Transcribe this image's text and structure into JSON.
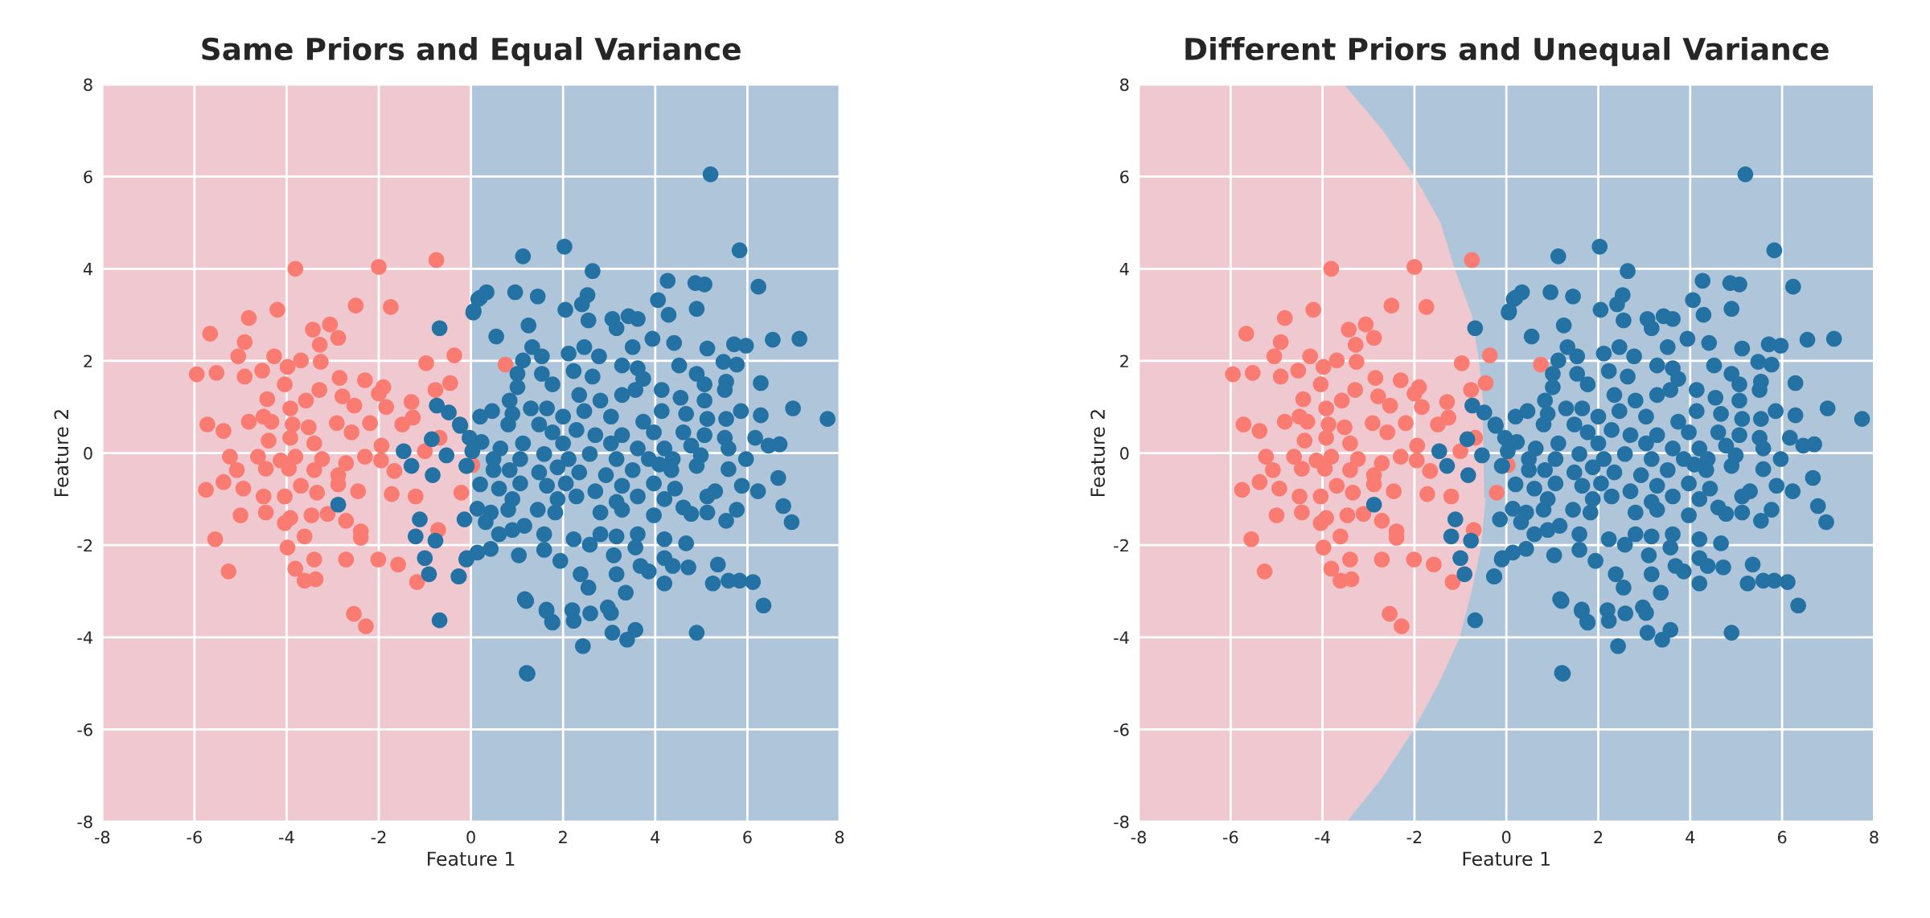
{
  "chart_data": [
    {
      "type": "scatter",
      "title": "Same Priors and Equal Variance",
      "xlabel": "Feature 1",
      "ylabel": "Feature 2",
      "xlim": [
        -8,
        8
      ],
      "ylim": [
        -8,
        8
      ],
      "xticks": [
        -8,
        -6,
        -4,
        -2,
        0,
        2,
        4,
        6,
        8
      ],
      "yticks": [
        -8,
        -6,
        -4,
        -2,
        0,
        2,
        4,
        6,
        8
      ],
      "grid": true,
      "bands": [
        {
          "axis": "x",
          "from": -8,
          "to": 0,
          "color": "#efc9cf"
        },
        {
          "axis": "x",
          "from": 0,
          "to": 8,
          "color": "#afc5d9"
        }
      ],
      "series": [
        {
          "color": "#f97b72",
          "marker": "circle",
          "x": [
            -3.81,
            -2.0,
            -0.75,
            -4.2,
            -2.5,
            -1.74,
            -4.82,
            -5.66,
            -3.06,
            -3.43,
            -2.88,
            -4.91,
            -3.28,
            -5.05,
            -4.27,
            -3.69,
            -3.26,
            -0.97,
            -0.36,
            -5.95,
            -5.52,
            -4.91,
            -4.53,
            -3.98,
            -2.85,
            -2.3,
            -0.45,
            -0.77,
            -4.04,
            -3.29,
            -4.42,
            -2.79,
            -1.9,
            -1.29,
            -2.53,
            -2.0,
            -1.84,
            -3.92,
            -3.58,
            -5.72,
            -5.37,
            -4.82,
            -4.5,
            -4.33,
            -3.87,
            -3.52,
            -2.91,
            -2.59,
            -2.19,
            -1.49,
            -1.26,
            -4.39,
            -3.92,
            -3.4,
            -1.94,
            -0.68,
            -4.62,
            -5.23,
            -4.13,
            -3.81,
            -3.23,
            -2.71,
            -2.3,
            -1.95,
            -1.0,
            -5.08,
            -4.45,
            -3.95,
            -3.4,
            -2.88,
            -1.66,
            0.03,
            -5.75,
            -5.37,
            -4.94,
            -4.5,
            -4.04,
            -3.69,
            -3.34,
            -2.88,
            -2.45,
            -1.72,
            -1.2,
            -0.21,
            -5.0,
            -4.45,
            -3.92,
            -3.46,
            -3.11,
            -2.71,
            -2.39,
            -5.55,
            -4.04,
            -3.61,
            -2.39,
            -0.71,
            -3.98,
            -3.4,
            -5.26,
            -3.81,
            -2.71,
            -2.01,
            -1.58,
            -3.61,
            -3.37,
            -1.17,
            -2.54,
            -2.28,
            0.75
          ],
          "values": [
            4.0,
            4.04,
            4.19,
            3.11,
            3.2,
            3.17,
            2.93,
            2.59,
            2.79,
            2.68,
            2.5,
            2.41,
            2.35,
            2.1,
            2.1,
            2.01,
            1.98,
            1.95,
            2.12,
            1.71,
            1.74,
            1.66,
            1.79,
            1.87,
            1.63,
            1.58,
            1.52,
            1.37,
            1.49,
            1.37,
            1.17,
            1.23,
            1.43,
            1.11,
            1.03,
            1.29,
            1.0,
            0.97,
            1.14,
            0.62,
            0.48,
            0.68,
            0.79,
            0.68,
            0.62,
            0.56,
            0.65,
            0.45,
            0.65,
            0.62,
            0.77,
            0.27,
            0.33,
            0.21,
            0.16,
            0.33,
            -0.08,
            -0.08,
            -0.16,
            -0.08,
            -0.13,
            -0.22,
            -0.08,
            -0.16,
            0.04,
            -0.37,
            -0.34,
            -0.34,
            -0.37,
            -0.48,
            -0.39,
            -0.26,
            -0.8,
            -0.63,
            -0.77,
            -0.94,
            -0.94,
            -0.71,
            -0.86,
            -0.68,
            -0.83,
            -0.89,
            -0.94,
            -0.86,
            -1.35,
            -1.29,
            -1.41,
            -1.35,
            -1.32,
            -1.47,
            -1.7,
            -1.87,
            -1.52,
            -1.81,
            -1.84,
            -1.67,
            -2.05,
            -2.31,
            -2.57,
            -2.51,
            -2.31,
            -2.31,
            -2.42,
            -2.77,
            -2.74,
            -2.8,
            -3.49,
            -3.76,
            1.92
          ]
        },
        {
          "color": "#2471a3",
          "marker": "circle",
          "x": [
            -2.88,
            -0.68,
            -0.74,
            -0.48,
            -0.24,
            -0.85,
            -1.46,
            -0.53,
            -1.29,
            -0.83,
            -1.11,
            -1.2,
            -0.77,
            -1.0,
            -0.91,
            -0.27,
            -0.1,
            -0.1,
            0.05,
            0.34,
            0.16,
            -0.68,
            1.21,
            1.17,
            1.64,
            1.76,
            5.2,
            1.13,
            2.03,
            2.64,
            5.83,
            4.27,
            4.87,
            5.07,
            6.24,
            4.9,
            0.96,
            1.45,
            0.06,
            0.2,
            2.53,
            2.41,
            2.05,
            2.55,
            1.25,
            0.55,
            4.06,
            4.29,
            3.07,
            3.42,
            3.62,
            3.16,
            3.51,
            3.94,
            4.41,
            5.13,
            5.71,
            5.97,
            6.55,
            7.13,
            5.48,
            5.77,
            1.33,
            1.54,
            2.12,
            2.46,
            2.78,
            1.13,
            1.01,
            1.54,
            1.77,
            1.01,
            2.23,
            2.64,
            3.28,
            3.62,
            3.74,
            4.52,
            4.9,
            5.07,
            5.54,
            5.51,
            6.29,
            3.57,
            4.14,
            4.55,
            0.84,
            2.35,
            2.81,
            3.28,
            5.07,
            6.99,
            7.74,
            5.86,
            6.29,
            0.2,
            0.46,
            0.9,
            1.3,
            1.65,
            2.0,
            2.46,
            3.04,
            3.74,
            4.14,
            4.67,
            5.13,
            5.54,
            -0.23,
            0.81,
            1.48,
            1.77,
            2.29,
            2.7,
            3.28,
            3.97,
            4.61,
            5.07,
            5.51,
            6.17,
            6.7,
            6.46,
            -0.03,
            0.23,
            0.64,
            1.13,
            2.0,
            3.04,
            3.62,
            4.2,
            4.78,
            5.59,
            0.03,
            0.49,
            1.07,
            1.59,
            2.12,
            2.58,
            3.16,
            3.86,
            4.38,
            4.99,
            5.97,
            -0.09,
            0.49,
            0.84,
            1.48,
            1.88,
            2.35,
            2.93,
            3.51,
            4.09,
            4.35,
            4.9,
            5.59,
            6.67,
            0.2,
            0.61,
            1.07,
            1.65,
            2.06,
            2.7,
            3.28,
            3.97,
            4.43,
            5.3,
            5.88,
            6.23,
            0.9,
            1.88,
            2.29,
            3.16,
            3.62,
            4.2,
            5.13,
            0.14,
            -0.14,
            0.43,
            0.81,
            1.45,
            1.83,
            2.81,
            3.28,
            3.97,
            4.61,
            4.78,
            5.13,
            5.54,
            5.77,
            6.78,
            6.96,
            0.32,
            0.61,
            0.9,
            1.16,
            1.59,
            2.23,
            2.58,
            2.81,
            3.16,
            3.62,
            4.2,
            4.67,
            0.43,
            0.14,
            -0.09,
            -0.26,
            1.04,
            1.59,
            1.94,
            3.1,
            3.57,
            3.68,
            4.2,
            4.38,
            4.72,
            5.36,
            2.38,
            2.55,
            3.16,
            3.86,
            4.2,
            5.25,
            5.59,
            5.83,
            6.12,
            3.36,
            1.2,
            1.64,
            1.77,
            2.2,
            2.23,
            2.59,
            2.97,
            3.04,
            3.07,
            3.39,
            3.57,
            2.43,
            4.9,
            6.35,
            1.23
          ],
          "values": [
            -1.12,
            2.71,
            1.03,
            0.88,
            0.62,
            0.3,
            0.04,
            -0.05,
            -0.28,
            -0.48,
            -1.44,
            -1.81,
            -1.9,
            -2.28,
            -2.63,
            -2.68,
            -2.31,
            -0.28,
            3.05,
            3.49,
            3.34,
            -3.63,
            -4.77,
            -3.17,
            -3.4,
            -3.66,
            6.05,
            4.27,
            4.48,
            3.95,
            4.4,
            3.74,
            3.69,
            3.66,
            3.61,
            3.13,
            3.49,
            3.4,
            3.08,
            3.37,
            3.43,
            3.23,
            3.11,
            2.88,
            2.77,
            2.53,
            3.32,
            3.0,
            2.91,
            2.97,
            2.91,
            2.71,
            2.3,
            2.48,
            2.39,
            2.27,
            2.36,
            2.33,
            2.46,
            2.48,
            1.98,
            1.92,
            2.3,
            2.1,
            2.16,
            2.3,
            2.1,
            2.01,
            1.72,
            1.72,
            1.49,
            1.43,
            1.78,
            1.66,
            1.9,
            1.84,
            1.61,
            1.9,
            1.72,
            1.49,
            1.55,
            1.37,
            1.52,
            1.37,
            1.37,
            1.2,
            1.14,
            1.26,
            1.14,
            1.26,
            1.14,
            0.97,
            0.74,
            0.91,
            0.82,
            0.79,
            0.91,
            0.85,
            0.97,
            0.97,
            0.79,
            0.91,
            0.79,
            0.68,
            0.91,
            0.85,
            0.74,
            0.74,
            0.59,
            0.62,
            0.62,
            0.45,
            0.5,
            0.39,
            0.39,
            0.45,
            0.45,
            0.39,
            0.33,
            0.33,
            0.19,
            0.16,
            0.33,
            0.24,
            0.1,
            0.21,
            0.21,
            0.21,
            0.1,
            0.1,
            0.16,
            0.1,
            0.04,
            -0.13,
            -0.13,
            -0.02,
            -0.13,
            -0.02,
            -0.13,
            -0.13,
            -0.13,
            -0.05,
            -0.13,
            -0.28,
            -0.37,
            -0.37,
            -0.42,
            -0.31,
            -0.42,
            -0.48,
            -0.37,
            -0.25,
            -0.37,
            -0.28,
            -0.35,
            -0.54,
            -0.68,
            -0.77,
            -0.66,
            -0.71,
            -0.66,
            -0.83,
            -0.71,
            -0.66,
            -0.77,
            -0.83,
            -0.71,
            -0.83,
            -1.0,
            -1.0,
            -0.94,
            -1.06,
            -0.94,
            -1.0,
            -0.94,
            -1.21,
            -1.44,
            -1.29,
            -1.23,
            -1.23,
            -1.29,
            -1.29,
            -1.23,
            -1.35,
            -1.18,
            -1.32,
            -1.29,
            -1.47,
            -1.23,
            -1.15,
            -1.5,
            -1.5,
            -1.76,
            -1.67,
            -1.58,
            -1.76,
            -1.87,
            -1.99,
            -1.76,
            -1.81,
            -1.76,
            -1.87,
            -1.96,
            -2.08,
            -2.16,
            -2.28,
            -2.68,
            -2.22,
            -2.1,
            -2.34,
            -2.22,
            -2.05,
            -2.45,
            -2.28,
            -2.45,
            -2.48,
            -2.42,
            -2.63,
            -2.92,
            -2.63,
            -2.57,
            -2.83,
            -2.83,
            -2.77,
            -2.77,
            -2.8,
            -3.03,
            -3.21,
            -3.43,
            -3.68,
            -3.41,
            -3.64,
            -3.48,
            -3.35,
            -3.47,
            -3.9,
            -4.05,
            -3.84,
            -4.19,
            -3.9,
            -3.31,
            -4.79
          ]
        }
      ]
    },
    {
      "type": "scatter",
      "title": "Different Priors and Unequal Variance",
      "xlabel": "Feature 1",
      "ylabel": "Feature 2",
      "xlim": [
        -8,
        8
      ],
      "ylim": [
        -8,
        8
      ],
      "xticks": [
        -8,
        -6,
        -4,
        -2,
        0,
        2,
        4,
        6,
        8
      ],
      "yticks": [
        -8,
        -6,
        -4,
        -2,
        0,
        2,
        4,
        6,
        8
      ],
      "grid": true,
      "bands": [
        {
          "axis": "x",
          "from": -8,
          "to": 8,
          "color": "#afc5d9"
        }
      ],
      "series": [
        {
          "type": "line",
          "color": "#efc9cf",
          "x": [
            -3.56,
            -2.72,
            -2.02,
            -1.46,
            -1.15,
            -0.78,
            -0.62,
            -0.52,
            null,
            -0.48,
            -0.57,
            -0.78,
            -1.04,
            -1.5,
            -2.04,
            -2.7,
            -3.5
          ],
          "values": [
            8,
            7,
            6,
            5,
            4,
            3,
            2,
            1,
            null,
            -1,
            -2,
            -3,
            -4,
            -5,
            -6,
            -7,
            -8
          ]
        },
        {
          "color": "#f97b72",
          "marker": "circle",
          "x": [
            -3.81,
            -2.0,
            -0.75,
            -4.2,
            -2.5,
            -1.74,
            -4.82,
            -5.66,
            -3.06,
            -3.43,
            -2.88,
            -4.91,
            -3.28,
            -5.05,
            -4.27,
            -3.69,
            -3.26,
            -0.97,
            -0.36,
            -5.95,
            -5.52,
            -4.91,
            -4.53,
            -3.98,
            -2.85,
            -2.3,
            -0.45,
            -0.77,
            -4.04,
            -3.29,
            -4.42,
            -2.79,
            -1.9,
            -1.29,
            -2.53,
            -2.0,
            -1.84,
            -3.92,
            -3.58,
            -5.72,
            -5.37,
            -4.82,
            -4.5,
            -4.33,
            -3.87,
            -3.52,
            -2.91,
            -2.59,
            -2.19,
            -1.49,
            -1.26,
            -4.39,
            -3.92,
            -3.4,
            -1.94,
            -0.68,
            -4.62,
            -5.23,
            -4.13,
            -3.81,
            -3.23,
            -2.71,
            -2.3,
            -1.95,
            -1.0,
            -5.08,
            -4.45,
            -3.95,
            -3.4,
            -2.88,
            -1.66,
            0.03,
            -5.75,
            -5.37,
            -4.94,
            -4.5,
            -4.04,
            -3.69,
            -3.34,
            -2.88,
            -2.45,
            -1.72,
            -1.2,
            -0.21,
            -5.0,
            -4.45,
            -3.92,
            -3.46,
            -3.11,
            -2.71,
            -2.39,
            -5.55,
            -4.04,
            -3.61,
            -2.39,
            -0.71,
            -3.98,
            -3.4,
            -5.26,
            -3.81,
            -2.71,
            -2.01,
            -1.58,
            -3.61,
            -3.37,
            -1.17,
            -2.54,
            -2.28,
            0.75
          ],
          "values": [
            4.0,
            4.04,
            4.19,
            3.11,
            3.2,
            3.17,
            2.93,
            2.59,
            2.79,
            2.68,
            2.5,
            2.41,
            2.35,
            2.1,
            2.1,
            2.01,
            1.98,
            1.95,
            2.12,
            1.71,
            1.74,
            1.66,
            1.79,
            1.87,
            1.63,
            1.58,
            1.52,
            1.37,
            1.49,
            1.37,
            1.17,
            1.23,
            1.43,
            1.11,
            1.03,
            1.29,
            1.0,
            0.97,
            1.14,
            0.62,
            0.48,
            0.68,
            0.79,
            0.68,
            0.62,
            0.56,
            0.65,
            0.45,
            0.65,
            0.62,
            0.77,
            0.27,
            0.33,
            0.21,
            0.16,
            0.33,
            -0.08,
            -0.08,
            -0.16,
            -0.08,
            -0.13,
            -0.22,
            -0.08,
            -0.16,
            0.04,
            -0.37,
            -0.34,
            -0.34,
            -0.37,
            -0.48,
            -0.39,
            -0.26,
            -0.8,
            -0.63,
            -0.77,
            -0.94,
            -0.94,
            -0.71,
            -0.86,
            -0.68,
            -0.83,
            -0.89,
            -0.94,
            -0.86,
            -1.35,
            -1.29,
            -1.41,
            -1.35,
            -1.32,
            -1.47,
            -1.7,
            -1.87,
            -1.52,
            -1.81,
            -1.84,
            -1.67,
            -2.05,
            -2.31,
            -2.57,
            -2.51,
            -2.31,
            -2.31,
            -2.42,
            -2.77,
            -2.74,
            -2.8,
            -3.49,
            -3.76,
            1.92
          ]
        },
        {
          "color": "#2471a3",
          "marker": "circle",
          "x": [
            -2.88,
            -0.68,
            -0.74,
            -0.48,
            -0.24,
            -0.85,
            -1.46,
            -0.53,
            -1.29,
            -0.83,
            -1.11,
            -1.2,
            -0.77,
            -1.0,
            -0.91,
            -0.27,
            -0.1,
            -0.1,
            0.05,
            0.34,
            0.16,
            -0.68,
            1.21,
            1.17,
            1.64,
            1.76,
            5.2,
            1.13,
            2.03,
            2.64,
            5.83,
            4.27,
            4.87,
            5.07,
            6.24,
            4.9,
            0.96,
            1.45,
            0.06,
            0.2,
            2.53,
            2.41,
            2.05,
            2.55,
            1.25,
            0.55,
            4.06,
            4.29,
            3.07,
            3.42,
            3.62,
            3.16,
            3.51,
            3.94,
            4.41,
            5.13,
            5.71,
            5.97,
            6.55,
            7.13,
            5.48,
            5.77,
            1.33,
            1.54,
            2.12,
            2.46,
            2.78,
            1.13,
            1.01,
            1.54,
            1.77,
            1.01,
            2.23,
            2.64,
            3.28,
            3.62,
            3.74,
            4.52,
            4.9,
            5.07,
            5.54,
            5.51,
            6.29,
            3.57,
            4.14,
            4.55,
            0.84,
            2.35,
            2.81,
            3.28,
            5.07,
            6.99,
            7.74,
            5.86,
            6.29,
            0.2,
            0.46,
            0.9,
            1.3,
            1.65,
            2.0,
            2.46,
            3.04,
            3.74,
            4.14,
            4.67,
            5.13,
            5.54,
            -0.23,
            0.81,
            1.48,
            1.77,
            2.29,
            2.7,
            3.28,
            3.97,
            4.61,
            5.07,
            5.51,
            6.17,
            6.7,
            6.46,
            -0.03,
            0.23,
            0.64,
            1.13,
            2.0,
            3.04,
            3.62,
            4.2,
            4.78,
            5.59,
            0.03,
            0.49,
            1.07,
            1.59,
            2.12,
            2.58,
            3.16,
            3.86,
            4.38,
            4.99,
            5.97,
            -0.09,
            0.49,
            0.84,
            1.48,
            1.88,
            2.35,
            2.93,
            3.51,
            4.09,
            4.35,
            4.9,
            5.59,
            6.67,
            0.2,
            0.61,
            1.07,
            1.65,
            2.06,
            2.7,
            3.28,
            3.97,
            4.43,
            5.3,
            5.88,
            6.23,
            0.9,
            1.88,
            2.29,
            3.16,
            3.62,
            4.2,
            5.13,
            0.14,
            -0.14,
            0.43,
            0.81,
            1.45,
            1.83,
            2.81,
            3.28,
            3.97,
            4.61,
            4.78,
            5.13,
            5.54,
            5.77,
            6.78,
            6.96,
            0.32,
            0.61,
            0.9,
            1.16,
            1.59,
            2.23,
            2.58,
            2.81,
            3.16,
            3.62,
            4.2,
            4.67,
            0.43,
            0.14,
            -0.09,
            -0.26,
            1.04,
            1.59,
            1.94,
            3.1,
            3.57,
            3.68,
            4.2,
            4.38,
            4.72,
            5.36,
            2.38,
            2.55,
            3.16,
            3.86,
            4.2,
            5.25,
            5.59,
            5.83,
            6.12,
            3.36,
            1.2,
            1.64,
            1.77,
            2.2,
            2.23,
            2.59,
            2.97,
            3.04,
            3.07,
            3.39,
            3.57,
            2.43,
            4.9,
            6.35,
            1.23
          ],
          "values": [
            -1.12,
            2.71,
            1.03,
            0.88,
            0.62,
            0.3,
            0.04,
            -0.05,
            -0.28,
            -0.48,
            -1.44,
            -1.81,
            -1.9,
            -2.28,
            -2.63,
            -2.68,
            -2.31,
            -0.28,
            3.05,
            3.49,
            3.34,
            -3.63,
            -4.77,
            -3.17,
            -3.4,
            -3.66,
            6.05,
            4.27,
            4.48,
            3.95,
            4.4,
            3.74,
            3.69,
            3.66,
            3.61,
            3.13,
            3.49,
            3.4,
            3.08,
            3.37,
            3.43,
            3.23,
            3.11,
            2.88,
            2.77,
            2.53,
            3.32,
            3.0,
            2.91,
            2.97,
            2.91,
            2.71,
            2.3,
            2.48,
            2.39,
            2.27,
            2.36,
            2.33,
            2.46,
            2.48,
            1.98,
            1.92,
            2.3,
            2.1,
            2.16,
            2.3,
            2.1,
            2.01,
            1.72,
            1.72,
            1.49,
            1.43,
            1.78,
            1.66,
            1.9,
            1.84,
            1.61,
            1.9,
            1.72,
            1.49,
            1.55,
            1.37,
            1.52,
            1.37,
            1.37,
            1.2,
            1.14,
            1.26,
            1.14,
            1.26,
            1.14,
            0.97,
            0.74,
            0.91,
            0.82,
            0.79,
            0.91,
            0.85,
            0.97,
            0.97,
            0.79,
            0.91,
            0.79,
            0.68,
            0.91,
            0.85,
            0.74,
            0.74,
            0.59,
            0.62,
            0.62,
            0.45,
            0.5,
            0.39,
            0.39,
            0.45,
            0.45,
            0.39,
            0.33,
            0.33,
            0.19,
            0.16,
            0.33,
            0.24,
            0.1,
            0.21,
            0.21,
            0.21,
            0.1,
            0.1,
            0.16,
            0.1,
            0.04,
            -0.13,
            -0.13,
            -0.02,
            -0.13,
            -0.02,
            -0.13,
            -0.13,
            -0.13,
            -0.05,
            -0.13,
            -0.28,
            -0.37,
            -0.37,
            -0.42,
            -0.31,
            -0.42,
            -0.48,
            -0.37,
            -0.25,
            -0.37,
            -0.28,
            -0.35,
            -0.54,
            -0.68,
            -0.77,
            -0.66,
            -0.71,
            -0.66,
            -0.83,
            -0.71,
            -0.66,
            -0.77,
            -0.83,
            -0.71,
            -0.83,
            -1.0,
            -1.0,
            -0.94,
            -1.06,
            -0.94,
            -1.0,
            -0.94,
            -1.21,
            -1.44,
            -1.29,
            -1.23,
            -1.23,
            -1.29,
            -1.29,
            -1.23,
            -1.35,
            -1.18,
            -1.32,
            -1.29,
            -1.47,
            -1.23,
            -1.15,
            -1.5,
            -1.5,
            -1.76,
            -1.67,
            -1.58,
            -1.76,
            -1.87,
            -1.99,
            -1.76,
            -1.81,
            -1.76,
            -1.87,
            -1.96,
            -2.08,
            -2.16,
            -2.28,
            -2.68,
            -2.22,
            -2.1,
            -2.34,
            -2.22,
            -2.05,
            -2.45,
            -2.28,
            -2.45,
            -2.48,
            -2.42,
            -2.63,
            -2.92,
            -2.63,
            -2.57,
            -2.83,
            -2.83,
            -2.77,
            -2.77,
            -2.8,
            -3.03,
            -3.21,
            -3.43,
            -3.68,
            -3.41,
            -3.64,
            -3.48,
            -3.35,
            -3.47,
            -3.9,
            -4.05,
            -3.84,
            -4.19,
            -3.9,
            -3.31,
            -4.79
          ]
        }
      ]
    }
  ]
}
